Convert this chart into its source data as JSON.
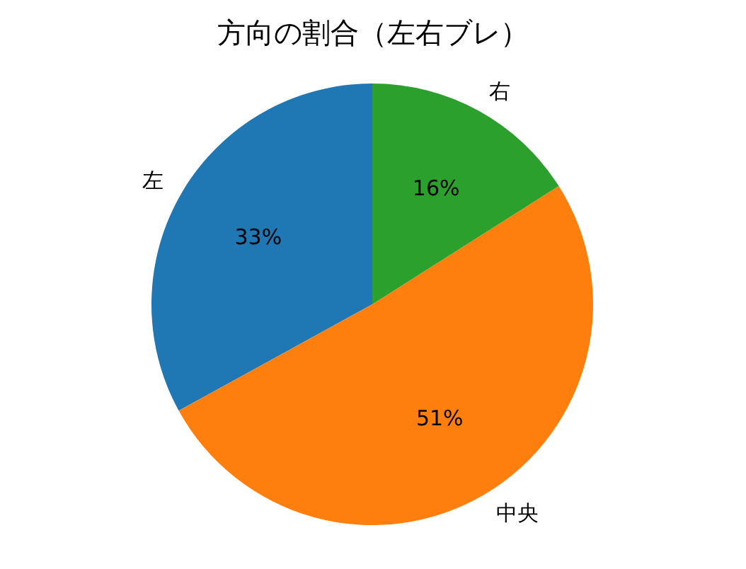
{
  "chart_data": {
    "type": "pie",
    "title": "方向の割合（左右ブレ）",
    "categories": [
      "左",
      "中央",
      "右"
    ],
    "values": [
      33,
      51,
      16
    ],
    "colors": [
      "#1f77b4",
      "#ff7f0e",
      "#2ca02c"
    ],
    "value_labels": [
      "33%",
      "51%",
      "16%"
    ]
  }
}
